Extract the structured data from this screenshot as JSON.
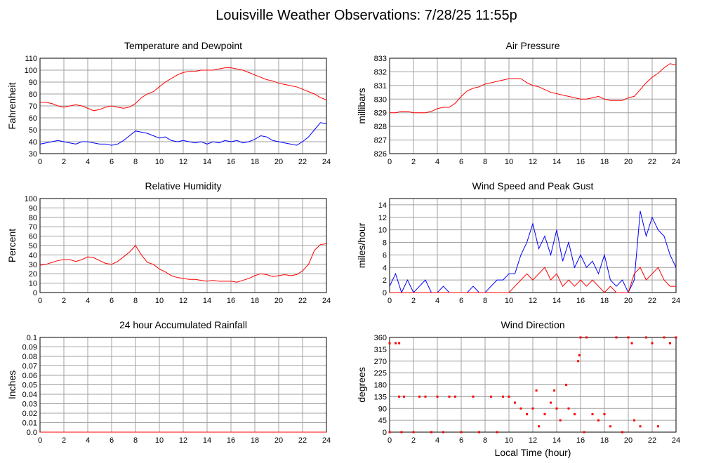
{
  "title": "Louisville Weather Observations: 7/28/25 11:55p",
  "chart_data": [
    {
      "type": "line",
      "title": "Temperature and Dewpoint",
      "y_label": "Fahrenheit",
      "grid": true,
      "x": [
        0,
        0.5,
        1,
        1.5,
        2,
        2.5,
        3,
        3.5,
        4,
        4.5,
        5,
        5.5,
        6,
        6.5,
        7,
        7.5,
        8,
        8.5,
        9,
        9.5,
        10,
        10.5,
        11,
        11.5,
        12,
        12.5,
        13,
        13.5,
        14,
        14.5,
        15,
        15.5,
        16,
        16.5,
        17,
        17.5,
        18,
        18.5,
        19,
        19.5,
        20,
        20.5,
        21,
        21.5,
        22,
        22.5,
        23,
        23.5,
        24
      ],
      "series": [
        {
          "color": "#ff0000",
          "values": [
            73,
            73,
            72,
            70,
            69,
            70,
            71,
            70,
            68,
            66,
            67,
            69,
            70,
            69,
            68,
            69,
            72,
            77,
            80,
            82,
            86,
            90,
            93,
            96,
            98,
            99,
            99,
            100,
            100,
            100,
            101,
            102,
            102,
            101,
            100,
            98,
            96,
            94,
            92,
            91,
            89,
            88,
            87,
            86,
            84,
            82,
            80,
            77,
            75
          ]
        },
        {
          "color": "#0000ff",
          "values": [
            38,
            39,
            40,
            41,
            40,
            39,
            38,
            40,
            40,
            39,
            38,
            38,
            37,
            38,
            41,
            45,
            49,
            48,
            47,
            45,
            43,
            44,
            41,
            40,
            41,
            40,
            39,
            40,
            38,
            40,
            39,
            41,
            40,
            41,
            39,
            40,
            42,
            45,
            44,
            41,
            40,
            39,
            38,
            37,
            40,
            44,
            50,
            56,
            55
          ]
        }
      ],
      "xlim": [
        0,
        24
      ],
      "xticks": [
        0,
        2,
        4,
        6,
        8,
        10,
        12,
        14,
        16,
        18,
        20,
        22,
        24
      ],
      "ylim": [
        30,
        110
      ],
      "yticks": [
        30,
        40,
        50,
        60,
        70,
        80,
        90,
        100,
        110
      ]
    },
    {
      "type": "line",
      "title": "Air Pressure",
      "y_label": "millibars",
      "grid": true,
      "x": [
        0,
        0.5,
        1,
        1.5,
        2,
        2.5,
        3,
        3.5,
        4,
        4.5,
        5,
        5.5,
        6,
        6.5,
        7,
        7.5,
        8,
        8.5,
        9,
        9.5,
        10,
        10.5,
        11,
        11.5,
        12,
        12.5,
        13,
        13.5,
        14,
        14.5,
        15,
        15.5,
        16,
        16.5,
        17,
        17.5,
        18,
        18.5,
        19,
        19.5,
        20,
        20.5,
        21,
        21.5,
        22,
        22.5,
        23,
        23.5,
        24
      ],
      "series": [
        {
          "color": "#ff0000",
          "values": [
            829,
            829,
            829.1,
            829.1,
            829,
            829,
            829,
            829.1,
            829.3,
            829.4,
            829.4,
            829.7,
            830.2,
            830.6,
            830.8,
            830.9,
            831.1,
            831.2,
            831.3,
            831.4,
            831.5,
            831.5,
            831.5,
            831.2,
            831,
            830.9,
            830.7,
            830.5,
            830.4,
            830.3,
            830.2,
            830.1,
            830,
            830,
            830.1,
            830.2,
            830,
            829.9,
            829.9,
            829.9,
            830.1,
            830.2,
            830.7,
            831.2,
            831.6,
            831.9,
            832.3,
            832.6,
            832.5
          ]
        }
      ],
      "xlim": [
        0,
        24
      ],
      "xticks": [
        0,
        2,
        4,
        6,
        8,
        10,
        12,
        14,
        16,
        18,
        20,
        22,
        24
      ],
      "ylim": [
        826,
        833
      ],
      "yticks": [
        826,
        827,
        828,
        829,
        830,
        831,
        832,
        833
      ]
    },
    {
      "type": "line",
      "title": "Relative Humidity",
      "y_label": "Percent",
      "grid": true,
      "x": [
        0,
        0.5,
        1,
        1.5,
        2,
        2.5,
        3,
        3.5,
        4,
        4.5,
        5,
        5.5,
        6,
        6.5,
        7,
        7.5,
        8,
        8.5,
        9,
        9.5,
        10,
        10.5,
        11,
        11.5,
        12,
        12.5,
        13,
        13.5,
        14,
        14.5,
        15,
        15.5,
        16,
        16.5,
        17,
        17.5,
        18,
        18.5,
        19,
        19.5,
        20,
        20.5,
        21,
        21.5,
        22,
        22.5,
        23,
        23.5,
        24
      ],
      "series": [
        {
          "color": "#ff0000",
          "values": [
            29,
            30,
            32,
            34,
            35,
            35,
            33,
            35,
            38,
            37,
            34,
            31,
            30,
            33,
            38,
            43,
            50,
            40,
            32,
            30,
            25,
            22,
            18,
            16,
            15,
            14,
            14,
            13,
            12,
            13,
            12,
            12,
            12,
            11,
            13,
            15,
            18,
            20,
            19,
            17,
            18,
            19,
            18,
            19,
            23,
            30,
            45,
            51,
            52
          ]
        }
      ],
      "xlim": [
        0,
        24
      ],
      "xticks": [
        0,
        2,
        4,
        6,
        8,
        10,
        12,
        14,
        16,
        18,
        20,
        22,
        24
      ],
      "ylim": [
        0,
        100
      ],
      "yticks": [
        0,
        10,
        20,
        30,
        40,
        50,
        60,
        70,
        80,
        90,
        100
      ]
    },
    {
      "type": "line",
      "title": "Wind Speed and Peak Gust",
      "y_label": "miles/hour",
      "grid": true,
      "x": [
        0,
        0.5,
        1,
        1.5,
        2,
        2.5,
        3,
        3.5,
        4,
        4.5,
        5,
        5.5,
        6,
        6.5,
        7,
        7.5,
        8,
        8.5,
        9,
        9.5,
        10,
        10.5,
        11,
        11.5,
        12,
        12.5,
        13,
        13.5,
        14,
        14.5,
        15,
        15.5,
        16,
        16.5,
        17,
        17.5,
        18,
        18.5,
        19,
        19.5,
        20,
        20.5,
        21,
        21.5,
        22,
        22.5,
        23,
        23.5,
        24
      ],
      "series": [
        {
          "color": "#0000ff",
          "values": [
            1,
            3,
            0,
            2,
            0,
            1,
            2,
            0,
            0,
            1,
            0,
            0,
            0,
            0,
            1,
            0,
            0,
            1,
            2,
            2,
            3,
            3,
            6,
            8,
            11,
            7,
            9,
            6,
            10,
            5,
            8,
            4,
            6,
            4,
            5,
            3,
            6,
            2,
            1,
            2,
            0,
            2,
            13,
            9,
            12,
            10,
            9,
            6,
            4
          ]
        },
        {
          "color": "#ff0000",
          "values": [
            0,
            0,
            0,
            0,
            0,
            0,
            0,
            0,
            0,
            0,
            0,
            0,
            0,
            0,
            0,
            0,
            0,
            0,
            0,
            0,
            0,
            1,
            2,
            3,
            2,
            3,
            4,
            2,
            3,
            1,
            2,
            1,
            2,
            1,
            2,
            1,
            0,
            1,
            0,
            0,
            0,
            3,
            4,
            2,
            3,
            4,
            2,
            1,
            1
          ]
        }
      ],
      "xlim": [
        0,
        24
      ],
      "xticks": [
        0,
        2,
        4,
        6,
        8,
        10,
        12,
        14,
        16,
        18,
        20,
        22,
        24
      ],
      "ylim": [
        0,
        15
      ],
      "yticks": [
        0,
        2,
        4,
        6,
        8,
        10,
        12,
        14
      ]
    },
    {
      "type": "line",
      "title": "24 hour Accumulated Rainfall",
      "y_label": "Inches",
      "grid": true,
      "x": [
        0,
        24
      ],
      "series": [
        {
          "color": "#ff0000",
          "values": [
            0,
            0
          ]
        }
      ],
      "xlim": [
        0,
        24
      ],
      "xticks": [
        0,
        2,
        4,
        6,
        8,
        10,
        12,
        14,
        16,
        18,
        20,
        22,
        24
      ],
      "ylim": [
        0,
        0.1
      ],
      "yticks": [
        {
          "value": 0,
          "label": "0.0"
        },
        0.01,
        0.02,
        0.03,
        0.04,
        0.05,
        0.06,
        0.07,
        0.08,
        0.09,
        0.1
      ]
    },
    {
      "type": "scatter",
      "title": "Wind Direction",
      "y_label": "degrees",
      "x_label": "Local Time (hour)",
      "grid": true,
      "x": [
        0,
        0.5,
        0.8,
        0.8,
        1.2,
        0,
        1,
        2,
        2.5,
        3,
        3.5,
        4,
        4.5,
        5,
        5.5,
        6,
        7,
        7.5,
        8.5,
        9,
        9.5,
        10,
        10.5,
        11,
        11.5,
        12,
        12.3,
        12.5,
        13,
        13.5,
        13.8,
        14,
        14.3,
        14.8,
        15,
        15.5,
        15.8,
        15.9,
        16,
        16.3,
        16.5,
        17,
        17.5,
        18,
        18.5,
        19,
        19.5,
        20,
        20.3,
        20.5,
        21,
        21.5,
        22,
        22.5,
        23,
        23.5,
        24
      ],
      "series": [
        {
          "color": "#ff0000",
          "values": [
            338,
            338,
            338,
            135,
            135,
            0,
            0,
            0,
            135,
            135,
            0,
            135,
            0,
            135,
            135,
            0,
            135,
            0,
            135,
            0,
            135,
            135,
            112,
            90,
            68,
            90,
            158,
            22,
            68,
            112,
            158,
            90,
            45,
            180,
            90,
            68,
            270,
            292,
            360,
            0,
            360,
            68,
            45,
            68,
            22,
            360,
            0,
            360,
            338,
            45,
            22,
            360,
            338,
            22,
            360,
            338,
            360
          ]
        }
      ],
      "xlim": [
        0,
        24
      ],
      "xticks": [
        0,
        2,
        4,
        6,
        8,
        10,
        12,
        14,
        16,
        18,
        20,
        22,
        24
      ],
      "ylim": [
        0,
        360
      ],
      "yticks": [
        0,
        45,
        90,
        135,
        180,
        225,
        270,
        315,
        360
      ]
    }
  ]
}
